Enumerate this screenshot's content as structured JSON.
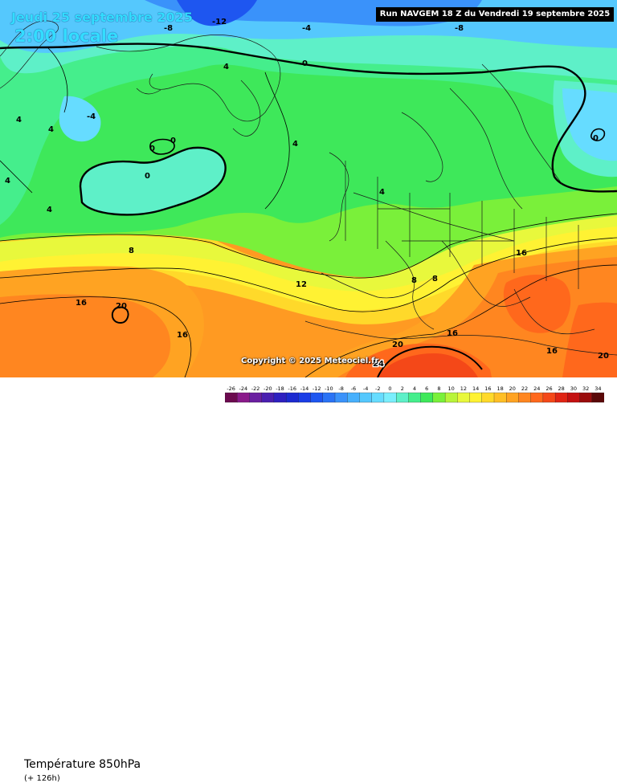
{
  "header": {
    "date": "Jeudi 25 septembre 2025",
    "local_time": "2:00 locale",
    "run": "Run NAVGEM 18 Z du Vendredi 19 septembre 2025"
  },
  "copyright": "Copyright © 2025 Meteociel.fr",
  "footer": {
    "parameter": "Température 850hPa",
    "lead_time": "(+ 126h)"
  },
  "scale": {
    "values": [
      "-26",
      "-24",
      "-22",
      "-20",
      "-18",
      "-16",
      "-14",
      "-12",
      "-10",
      "-8",
      "-6",
      "-4",
      "-2",
      "0",
      "2",
      "4",
      "6",
      "8",
      "10",
      "12",
      "14",
      "16",
      "18",
      "20",
      "22",
      "24",
      "26",
      "28",
      "30",
      "32",
      "34"
    ],
    "colors": [
      "#6b0a4f",
      "#8a1a8a",
      "#6a1fa0",
      "#4a1fb0",
      "#2e20c0",
      "#1c2ad0",
      "#1a3de6",
      "#1e56f0",
      "#2a73f5",
      "#3a92fa",
      "#47b0fc",
      "#55c8fd",
      "#66dcff",
      "#7aeefc",
      "#5ef0c8",
      "#45ee8c",
      "#3ee85a",
      "#7af03a",
      "#b8f43a",
      "#e8f83c",
      "#fff233",
      "#ffd92a",
      "#ffbf26",
      "#ffa322",
      "#ff8620",
      "#ff681c",
      "#f44818",
      "#e02414",
      "#c41010",
      "#9a0c0c",
      "#5a0808"
    ]
  },
  "contour_labels": [
    {
      "text": "-8"
    },
    {
      "text": "-12"
    },
    {
      "text": "-4"
    },
    {
      "text": "-8"
    },
    {
      "text": "0"
    },
    {
      "text": "-4"
    },
    {
      "text": "4"
    },
    {
      "text": "4"
    },
    {
      "text": "4"
    },
    {
      "text": "0"
    },
    {
      "text": "0"
    },
    {
      "text": "0"
    },
    {
      "text": "4"
    },
    {
      "text": "4"
    },
    {
      "text": "4"
    },
    {
      "text": "8"
    },
    {
      "text": "12"
    },
    {
      "text": "8"
    },
    {
      "text": "8"
    },
    {
      "text": "16"
    },
    {
      "text": "20"
    },
    {
      "text": "16"
    },
    {
      "text": "16"
    },
    {
      "text": "16"
    },
    {
      "text": "20"
    },
    {
      "text": "24"
    },
    {
      "text": "16"
    },
    {
      "text": "20"
    },
    {
      "text": "0"
    },
    {
      "text": "4"
    }
  ]
}
